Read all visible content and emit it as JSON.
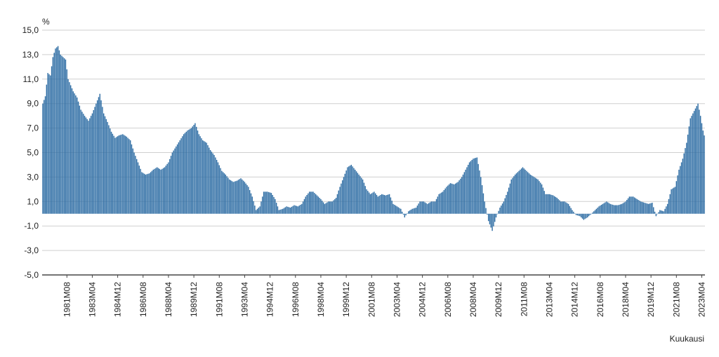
{
  "chart_data": {
    "type": "bar",
    "ylabel": "%",
    "xlabel": "Kuukausi",
    "ylim": [
      -5.0,
      15.0
    ],
    "yticks": [
      "15,0",
      "13,0",
      "11,0",
      "9,0",
      "7,0",
      "5,0",
      "3,0",
      "1,0",
      "-1,0",
      "-3,0",
      "-5,0"
    ],
    "ytick_values": [
      15,
      13,
      11,
      9,
      7,
      5,
      3,
      1,
      -1,
      -3,
      -5
    ],
    "grid": true,
    "x_start": "1980M01",
    "x_end": "2023M06",
    "xtick_labels": [
      "1981M08",
      "1983M04",
      "1984M12",
      "1986M08",
      "1988M04",
      "1989M12",
      "1991M08",
      "1993M04",
      "1994M12",
      "1996M08",
      "1998M04",
      "1999M12",
      "2001M08",
      "2003M04",
      "2004M12",
      "2006M08",
      "2008M04",
      "2009M12",
      "2011M08",
      "2013M04",
      "2014M12",
      "2016M08",
      "2018M04",
      "2019M12",
      "2021M08",
      "2023M04"
    ],
    "color": "#2E6DA4",
    "anchors": [
      [
        "1980M01",
        9.0
      ],
      [
        "1980M03",
        9.6
      ],
      [
        "1980M05",
        11.5
      ],
      [
        "1980M07",
        11.3
      ],
      [
        "1980M09",
        12.8
      ],
      [
        "1980M11",
        13.5
      ],
      [
        "1981M01",
        13.7
      ],
      [
        "1981M03",
        13.0
      ],
      [
        "1981M05",
        12.8
      ],
      [
        "1981M07",
        12.6
      ],
      [
        "1981M09",
        11.0
      ],
      [
        "1981M11",
        10.5
      ],
      [
        "1982M01",
        10.0
      ],
      [
        "1982M04",
        9.5
      ],
      [
        "1982M07",
        8.5
      ],
      [
        "1982M10",
        8.0
      ],
      [
        "1983M01",
        7.6
      ],
      [
        "1983M04",
        8.2
      ],
      [
        "1983M07",
        9.0
      ],
      [
        "1983M10",
        9.8
      ],
      [
        "1984M01",
        8.2
      ],
      [
        "1984M04",
        7.5
      ],
      [
        "1984M07",
        6.7
      ],
      [
        "1984M10",
        6.2
      ],
      [
        "1985M01",
        6.4
      ],
      [
        "1985M04",
        6.5
      ],
      [
        "1985M07",
        6.3
      ],
      [
        "1985M10",
        6.0
      ],
      [
        "1986M01",
        5.0
      ],
      [
        "1986M04",
        4.2
      ],
      [
        "1986M07",
        3.4
      ],
      [
        "1986M10",
        3.2
      ],
      [
        "1987M01",
        3.3
      ],
      [
        "1987M04",
        3.6
      ],
      [
        "1987M07",
        3.8
      ],
      [
        "1987M10",
        3.6
      ],
      [
        "1988M01",
        3.8
      ],
      [
        "1988M04",
        4.2
      ],
      [
        "1988M07",
        5.0
      ],
      [
        "1988M10",
        5.5
      ],
      [
        "1989M01",
        6.0
      ],
      [
        "1989M04",
        6.5
      ],
      [
        "1989M07",
        6.8
      ],
      [
        "1989M10",
        7.0
      ],
      [
        "1990M01",
        7.4
      ],
      [
        "1990M04",
        6.5
      ],
      [
        "1990M07",
        6.0
      ],
      [
        "1990M10",
        5.8
      ],
      [
        "1991M01",
        5.2
      ],
      [
        "1991M04",
        4.8
      ],
      [
        "1991M07",
        4.2
      ],
      [
        "1991M10",
        3.5
      ],
      [
        "1992M01",
        3.2
      ],
      [
        "1992M04",
        2.8
      ],
      [
        "1992M07",
        2.6
      ],
      [
        "1992M10",
        2.7
      ],
      [
        "1993M01",
        2.9
      ],
      [
        "1993M04",
        2.6
      ],
      [
        "1993M07",
        2.2
      ],
      [
        "1993M10",
        1.4
      ],
      [
        "1994M01",
        0.3
      ],
      [
        "1994M04",
        0.6
      ],
      [
        "1994M07",
        1.8
      ],
      [
        "1994M10",
        1.8
      ],
      [
        "1995M01",
        1.7
      ],
      [
        "1995M04",
        1.2
      ],
      [
        "1995M07",
        0.3
      ],
      [
        "1995M10",
        0.4
      ],
      [
        "1996M01",
        0.6
      ],
      [
        "1996M04",
        0.5
      ],
      [
        "1996M07",
        0.7
      ],
      [
        "1996M10",
        0.6
      ],
      [
        "1997M01",
        0.8
      ],
      [
        "1997M04",
        1.4
      ],
      [
        "1997M07",
        1.8
      ],
      [
        "1997M10",
        1.8
      ],
      [
        "1998M01",
        1.5
      ],
      [
        "1998M04",
        1.2
      ],
      [
        "1998M07",
        0.8
      ],
      [
        "1998M10",
        1.0
      ],
      [
        "1999M01",
        1.0
      ],
      [
        "1999M04",
        1.3
      ],
      [
        "1999M07",
        2.2
      ],
      [
        "1999M10",
        3.0
      ],
      [
        "2000M01",
        3.8
      ],
      [
        "2000M04",
        4.0
      ],
      [
        "2000M07",
        3.6
      ],
      [
        "2000M10",
        3.2
      ],
      [
        "2001M01",
        2.8
      ],
      [
        "2001M04",
        2.0
      ],
      [
        "2001M07",
        1.6
      ],
      [
        "2001M10",
        1.8
      ],
      [
        "2002M01",
        1.4
      ],
      [
        "2002M04",
        1.6
      ],
      [
        "2002M07",
        1.5
      ],
      [
        "2002M10",
        1.6
      ],
      [
        "2003M01",
        0.8
      ],
      [
        "2003M04",
        0.6
      ],
      [
        "2003M07",
        0.4
      ],
      [
        "2003M10",
        -0.3
      ],
      [
        "2004M01",
        0.2
      ],
      [
        "2004M04",
        0.4
      ],
      [
        "2004M07",
        0.5
      ],
      [
        "2004M10",
        1.0
      ],
      [
        "2005M01",
        1.0
      ],
      [
        "2005M04",
        0.8
      ],
      [
        "2005M07",
        1.0
      ],
      [
        "2005M10",
        1.0
      ],
      [
        "2006M01",
        1.6
      ],
      [
        "2006M04",
        1.8
      ],
      [
        "2006M07",
        2.2
      ],
      [
        "2006M10",
        2.5
      ],
      [
        "2007M01",
        2.4
      ],
      [
        "2007M04",
        2.6
      ],
      [
        "2007M07",
        3.0
      ],
      [
        "2007M10",
        3.6
      ],
      [
        "2008M01",
        4.2
      ],
      [
        "2008M04",
        4.5
      ],
      [
        "2008M07",
        4.6
      ],
      [
        "2008M10",
        3.0
      ],
      [
        "2009M01",
        1.0
      ],
      [
        "2009M04",
        -0.6
      ],
      [
        "2009M07",
        -1.4
      ],
      [
        "2009M10",
        -0.3
      ],
      [
        "2010M01",
        0.5
      ],
      [
        "2010M04",
        1.0
      ],
      [
        "2010M07",
        1.8
      ],
      [
        "2010M10",
        2.8
      ],
      [
        "2011M01",
        3.2
      ],
      [
        "2011M04",
        3.5
      ],
      [
        "2011M07",
        3.8
      ],
      [
        "2011M10",
        3.5
      ],
      [
        "2012M01",
        3.2
      ],
      [
        "2012M04",
        3.0
      ],
      [
        "2012M07",
        2.8
      ],
      [
        "2012M10",
        2.4
      ],
      [
        "2013M01",
        1.6
      ],
      [
        "2013M04",
        1.6
      ],
      [
        "2013M07",
        1.5
      ],
      [
        "2013M10",
        1.3
      ],
      [
        "2014M01",
        1.0
      ],
      [
        "2014M04",
        1.0
      ],
      [
        "2014M07",
        0.8
      ],
      [
        "2014M10",
        0.3
      ],
      [
        "2015M01",
        -0.1
      ],
      [
        "2015M04",
        -0.2
      ],
      [
        "2015M07",
        -0.5
      ],
      [
        "2015M10",
        -0.3
      ],
      [
        "2016M01",
        0.0
      ],
      [
        "2016M04",
        0.3
      ],
      [
        "2016M07",
        0.6
      ],
      [
        "2016M10",
        0.8
      ],
      [
        "2017M01",
        1.0
      ],
      [
        "2017M04",
        0.8
      ],
      [
        "2017M07",
        0.7
      ],
      [
        "2017M10",
        0.7
      ],
      [
        "2018M01",
        0.8
      ],
      [
        "2018M04",
        1.0
      ],
      [
        "2018M07",
        1.4
      ],
      [
        "2018M10",
        1.4
      ],
      [
        "2019M01",
        1.2
      ],
      [
        "2019M04",
        1.0
      ],
      [
        "2019M07",
        0.9
      ],
      [
        "2019M10",
        0.8
      ],
      [
        "2020M01",
        0.9
      ],
      [
        "2020M04",
        -0.2
      ],
      [
        "2020M07",
        0.3
      ],
      [
        "2020M10",
        0.2
      ],
      [
        "2021M01",
        0.8
      ],
      [
        "2021M04",
        2.0
      ],
      [
        "2021M07",
        2.2
      ],
      [
        "2021M10",
        3.6
      ],
      [
        "2022M01",
        4.5
      ],
      [
        "2022M04",
        5.8
      ],
      [
        "2022M07",
        7.8
      ],
      [
        "2022M10",
        8.4
      ],
      [
        "2023M01",
        9.0
      ],
      [
        "2023M03",
        8.0
      ],
      [
        "2023M05",
        6.8
      ],
      [
        "2023M06",
        6.4
      ]
    ]
  }
}
